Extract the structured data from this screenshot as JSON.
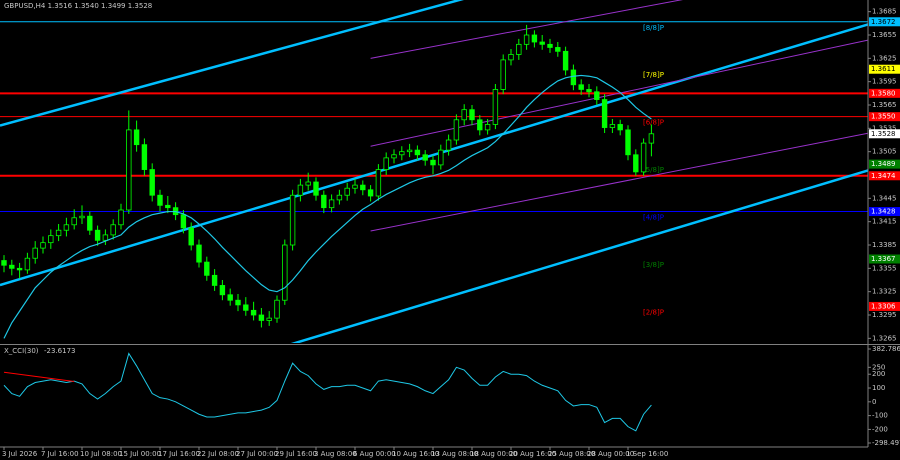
{
  "chart_data": {
    "type": "candlestick",
    "title": "GBPUSD,H4 1.3516 1.3540 1.3499 1.3528",
    "up_color": "#00ff00",
    "down_color": "#00ff00",
    "categories": [
      "3 Jul 2026",
      null,
      null,
      null,
      null,
      "7 Jul 16:00",
      null,
      null,
      null,
      null,
      "10 Jul 08:00",
      null,
      null,
      null,
      null,
      "15 Jul 00:00",
      null,
      null,
      null,
      null,
      "17 Jul 16:00",
      null,
      null,
      null,
      null,
      "22 Jul 08:00",
      null,
      null,
      null,
      null,
      "27 Jul 00:00",
      null,
      null,
      null,
      null,
      "29 Jul 16:00",
      null,
      null,
      null,
      null,
      "3 Aug 08:00",
      null,
      null,
      null,
      null,
      "6 Aug 00:00",
      null,
      null,
      null,
      null,
      "10 Aug 16:00",
      null,
      null,
      null,
      null,
      "13 Aug 08:00",
      null,
      null,
      null,
      null,
      "18 Aug 00:00",
      null,
      null,
      null,
      null,
      "20 Aug 16:00",
      null,
      null,
      null,
      null,
      "25 Aug 08:00",
      null,
      null,
      null,
      null,
      "28 Aug 00:00",
      null,
      null,
      null,
      null,
      "1 Sep 16:00",
      null,
      null,
      null
    ],
    "candles": [
      [
        1.3365,
        1.3372,
        1.335,
        1.3359
      ],
      [
        1.3359,
        1.3366,
        1.3346,
        1.3355
      ],
      [
        1.3355,
        1.3362,
        1.3342,
        1.3353
      ],
      [
        1.3353,
        1.3375,
        1.3348,
        1.3368
      ],
      [
        1.3368,
        1.339,
        1.3361,
        1.3381
      ],
      [
        1.3381,
        1.3396,
        1.3374,
        1.3388
      ],
      [
        1.3388,
        1.3405,
        1.338,
        1.3397
      ],
      [
        1.3397,
        1.3412,
        1.339,
        1.3404
      ],
      [
        1.3404,
        1.342,
        1.3396,
        1.3411
      ],
      [
        1.3411,
        1.3431,
        1.3405,
        1.342
      ],
      [
        1.342,
        1.3436,
        1.3412,
        1.3422
      ],
      [
        1.3422,
        1.3428,
        1.3398,
        1.3404
      ],
      [
        1.3404,
        1.341,
        1.3384,
        1.3391
      ],
      [
        1.3391,
        1.3405,
        1.3385,
        1.3398
      ],
      [
        1.3398,
        1.3418,
        1.3392,
        1.3411
      ],
      [
        1.3411,
        1.3438,
        1.3405,
        1.343
      ],
      [
        1.343,
        1.3558,
        1.3425,
        1.3533
      ],
      [
        1.3533,
        1.3545,
        1.3505,
        1.3514
      ],
      [
        1.3514,
        1.3522,
        1.3474,
        1.3482
      ],
      [
        1.3482,
        1.349,
        1.3441,
        1.3449
      ],
      [
        1.3449,
        1.3456,
        1.3428,
        1.3436
      ],
      [
        1.3436,
        1.3448,
        1.3426,
        1.3433
      ],
      [
        1.3433,
        1.344,
        1.3417,
        1.3424
      ],
      [
        1.3424,
        1.343,
        1.34,
        1.3407
      ],
      [
        1.3407,
        1.3414,
        1.3378,
        1.3385
      ],
      [
        1.3385,
        1.3392,
        1.3356,
        1.3363
      ],
      [
        1.3363,
        1.337,
        1.3339,
        1.3346
      ],
      [
        1.3346,
        1.3354,
        1.3326,
        1.3333
      ],
      [
        1.3333,
        1.334,
        1.3314,
        1.3321
      ],
      [
        1.3321,
        1.3329,
        1.3307,
        1.3314
      ],
      [
        1.3314,
        1.3322,
        1.33,
        1.3308
      ],
      [
        1.3308,
        1.3318,
        1.3294,
        1.3301
      ],
      [
        1.3301,
        1.3312,
        1.3288,
        1.3295
      ],
      [
        1.3295,
        1.3304,
        1.3279,
        1.3288
      ],
      [
        1.3288,
        1.33,
        1.3281,
        1.3291
      ],
      [
        1.3291,
        1.332,
        1.3285,
        1.3314
      ],
      [
        1.3314,
        1.3392,
        1.3308,
        1.3385
      ],
      [
        1.3385,
        1.3456,
        1.3378,
        1.3449
      ],
      [
        1.3449,
        1.347,
        1.3441,
        1.3462
      ],
      [
        1.3462,
        1.3478,
        1.3455,
        1.3466
      ],
      [
        1.3466,
        1.3472,
        1.3442,
        1.3449
      ],
      [
        1.3449,
        1.3455,
        1.3426,
        1.3433
      ],
      [
        1.3433,
        1.345,
        1.3427,
        1.3443
      ],
      [
        1.3443,
        1.3456,
        1.3437,
        1.3449
      ],
      [
        1.3449,
        1.3465,
        1.3442,
        1.3458
      ],
      [
        1.3458,
        1.347,
        1.3451,
        1.3462
      ],
      [
        1.3462,
        1.3468,
        1.3449,
        1.3456
      ],
      [
        1.3456,
        1.3462,
        1.3441,
        1.3448
      ],
      [
        1.3448,
        1.3489,
        1.3442,
        1.3482
      ],
      [
        1.3482,
        1.3504,
        1.3475,
        1.3497
      ],
      [
        1.3497,
        1.3508,
        1.349,
        1.3501
      ],
      [
        1.3501,
        1.3512,
        1.3494,
        1.3505
      ],
      [
        1.3505,
        1.3515,
        1.3498,
        1.3507
      ],
      [
        1.3507,
        1.3513,
        1.3494,
        1.3501
      ],
      [
        1.3501,
        1.3507,
        1.3487,
        1.3494
      ],
      [
        1.3494,
        1.35,
        1.3476,
        1.3488
      ],
      [
        1.3488,
        1.3514,
        1.3482,
        1.3507
      ],
      [
        1.3507,
        1.3527,
        1.35,
        1.352
      ],
      [
        1.352,
        1.3553,
        1.3514,
        1.3546
      ],
      [
        1.3546,
        1.3566,
        1.3539,
        1.3559
      ],
      [
        1.3559,
        1.3565,
        1.3539,
        1.3546
      ],
      [
        1.3546,
        1.3552,
        1.3526,
        1.3533
      ],
      [
        1.3533,
        1.3547,
        1.3527,
        1.354
      ],
      [
        1.354,
        1.3592,
        1.3534,
        1.3585
      ],
      [
        1.3585,
        1.363,
        1.3579,
        1.3623
      ],
      [
        1.3623,
        1.3637,
        1.3616,
        1.363
      ],
      [
        1.363,
        1.365,
        1.3623,
        1.3643
      ],
      [
        1.3643,
        1.3668,
        1.3636,
        1.3655
      ],
      [
        1.3655,
        1.3661,
        1.3639,
        1.3646
      ],
      [
        1.3646,
        1.3655,
        1.3636,
        1.3643
      ],
      [
        1.3643,
        1.365,
        1.3632,
        1.3639
      ],
      [
        1.3639,
        1.3646,
        1.3627,
        1.3634
      ],
      [
        1.3634,
        1.364,
        1.3603,
        1.361
      ],
      [
        1.361,
        1.3617,
        1.3584,
        1.3591
      ],
      [
        1.3591,
        1.3598,
        1.3578,
        1.3585
      ],
      [
        1.3585,
        1.3592,
        1.3575,
        1.3582
      ],
      [
        1.3582,
        1.3589,
        1.3565,
        1.3572
      ],
      [
        1.3572,
        1.3579,
        1.3529,
        1.3536
      ],
      [
        1.3536,
        1.3547,
        1.3529,
        1.354
      ],
      [
        1.354,
        1.3546,
        1.3526,
        1.3533
      ],
      [
        1.3533,
        1.3539,
        1.3494,
        1.3501
      ],
      [
        1.3501,
        1.3508,
        1.3474,
        1.3479
      ],
      [
        1.3479,
        1.3522,
        1.3474,
        1.3516
      ],
      [
        1.3516,
        1.354,
        1.3499,
        1.3528
      ]
    ],
    "ma": {
      "color": "#1ec8e6",
      "values": [
        1.3265,
        1.3285,
        1.33,
        1.3315,
        1.333,
        1.334,
        1.335,
        1.3358,
        1.3365,
        1.3372,
        1.3378,
        1.3383,
        1.3386,
        1.339,
        1.3394,
        1.3398,
        1.3408,
        1.3415,
        1.342,
        1.3424,
        1.3426,
        1.3428,
        1.3428,
        1.3425,
        1.342,
        1.3412,
        1.3403,
        1.3393,
        1.3382,
        1.3372,
        1.3362,
        1.3352,
        1.3343,
        1.3334,
        1.3327,
        1.3325,
        1.333,
        1.334,
        1.3352,
        1.3365,
        1.3376,
        1.3386,
        1.3396,
        1.3405,
        1.3414,
        1.3423,
        1.3431,
        1.3437,
        1.3444,
        1.345,
        1.3455,
        1.346,
        1.3465,
        1.3469,
        1.3472,
        1.3474,
        1.3477,
        1.3481,
        1.3487,
        1.3494,
        1.35,
        1.3505,
        1.351,
        1.3518,
        1.3528,
        1.3539,
        1.355,
        1.3562,
        1.3572,
        1.3581,
        1.3589,
        1.3596,
        1.36,
        1.3602,
        1.3603,
        1.3602,
        1.36,
        1.3594,
        1.3588,
        1.3581,
        1.3572,
        1.3562,
        1.3554,
        1.3547
      ]
    },
    "ylim": [
      1.3259,
      1.37
    ],
    "yticks": [
      1.3685,
      1.3655,
      1.3625,
      1.3595,
      1.3565,
      1.3535,
      1.3505,
      1.3445,
      1.3415,
      1.3385,
      1.3355,
      1.3325,
      1.3295,
      1.3265
    ],
    "levels": [
      {
        "price": 1.3672,
        "tag": "1.3672",
        "color": "#00bfff",
        "line": "thin",
        "label": "[8/8]P"
      },
      {
        "price": 1.3611,
        "tag": "1.3611",
        "color": "#ffff00",
        "line": "none",
        "label": "[7/8]P"
      },
      {
        "price": 1.358,
        "tag": "1.3580",
        "color": "#ff0000",
        "line": "thick"
      },
      {
        "price": 1.355,
        "tag": "1.3550",
        "color": "#ff0000",
        "line": "thin",
        "label": "[6/8]P"
      },
      {
        "price": 1.3489,
        "tag": "1.3489",
        "color": "#008000",
        "line": "none",
        "label": "[5/8]P"
      },
      {
        "price": 1.3474,
        "tag": "1.3474",
        "color": "#ff0000",
        "line": "thick"
      },
      {
        "price": 1.3428,
        "tag": "1.3428",
        "color": "#0000ff",
        "line": "thin",
        "label": "[4/8]P"
      },
      {
        "price": 1.3367,
        "tag": "1.3367",
        "color": "#008000",
        "line": "none",
        "label": "[3/8]P"
      },
      {
        "price": 1.3306,
        "tag": "1.3306",
        "color": "#ff0000",
        "line": "none",
        "label": "[2/8]P"
      }
    ],
    "trendlines": [
      {
        "x": [
          0,
          58
        ],
        "y": [
          1.354,
          1.3699
        ],
        "color": "#00bfff",
        "width": 2.5,
        "ray": "both"
      },
      {
        "x": [
          0,
          83
        ],
        "y": [
          1.3335,
          1.3585
        ],
        "color": "#00bfff",
        "width": 2.5,
        "ray": "both"
      },
      {
        "x": [
          37,
          83
        ],
        "y": [
          1.3258,
          1.3397
        ],
        "color": "#00bfff",
        "width": 2.5,
        "ray": "both"
      },
      {
        "x": [
          47,
          83
        ],
        "y": [
          1.3625,
          1.3693
        ],
        "color": "#9932cc",
        "width": 1,
        "ray": "right"
      },
      {
        "x": [
          47,
          83
        ],
        "y": [
          1.3512,
          1.3589
        ],
        "color": "#9932cc",
        "width": 1,
        "ray": "right"
      },
      {
        "x": [
          47,
          83
        ],
        "y": [
          1.3403,
          1.3474
        ],
        "color": "#9932cc",
        "width": 1,
        "ray": "right"
      }
    ],
    "cci": {
      "name": "X_CCI(30)",
      "color": "#1ec8e6",
      "values": [
        120,
        60,
        40,
        110,
        140,
        150,
        160,
        150,
        140,
        150,
        130,
        60,
        20,
        60,
        110,
        150,
        350,
        260,
        160,
        60,
        30,
        20,
        0,
        -30,
        -60,
        -90,
        -110,
        -110,
        -100,
        -90,
        -80,
        -80,
        -70,
        -60,
        -40,
        10,
        150,
        280,
        220,
        190,
        130,
        90,
        110,
        110,
        120,
        120,
        100,
        80,
        150,
        160,
        150,
        140,
        130,
        110,
        80,
        60,
        110,
        160,
        250,
        230,
        170,
        120,
        120,
        180,
        220,
        200,
        200,
        190,
        150,
        120,
        100,
        80,
        10,
        -30,
        -20,
        -20,
        -40,
        -150,
        -120,
        -120,
        -180,
        -210,
        -90,
        -23.6173
      ],
      "ylim": [
        -298.497,
        382.786
      ],
      "yticks": [
        382.786,
        250,
        200,
        100,
        0,
        -100,
        -200,
        -298.497
      ],
      "trendline": {
        "x": [
          0,
          9
        ],
        "values": [
          214,
          147
        ],
        "color": "#ff0000"
      }
    }
  }
}
